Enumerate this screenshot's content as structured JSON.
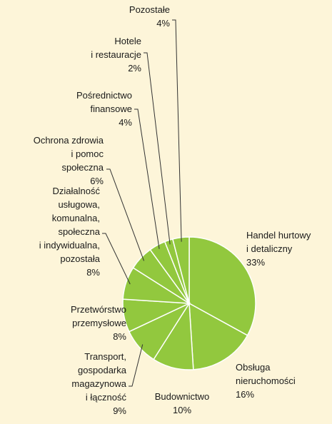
{
  "chart_data": {
    "type": "pie",
    "categories": [
      "Handel hurtowy\ni detaliczny",
      "Obsługa\nnieruchomości",
      "Budownictwo",
      "Transport,\ngospodarka\nmagazynowa\ni łączność",
      "Przetwórstwo\nprzemysłowe",
      "Działalność\nusługowa,\nkomunalna,\nspołeczna\ni indywidualna,\npozostała",
      "Ochrona zdrowia\ni pomoc\nspołeczna",
      "Pośrednictwo\nfinansowe",
      "Hotele\ni restauracje",
      "Pozostałe"
    ],
    "values": [
      33,
      16,
      10,
      9,
      8,
      8,
      6,
      4,
      2,
      4
    ],
    "value_labels": [
      "33%",
      "16%",
      "10%",
      "9%",
      "8%",
      "8%",
      "6%",
      "4%",
      "2%",
      "4%"
    ],
    "color": "#92c83e"
  }
}
